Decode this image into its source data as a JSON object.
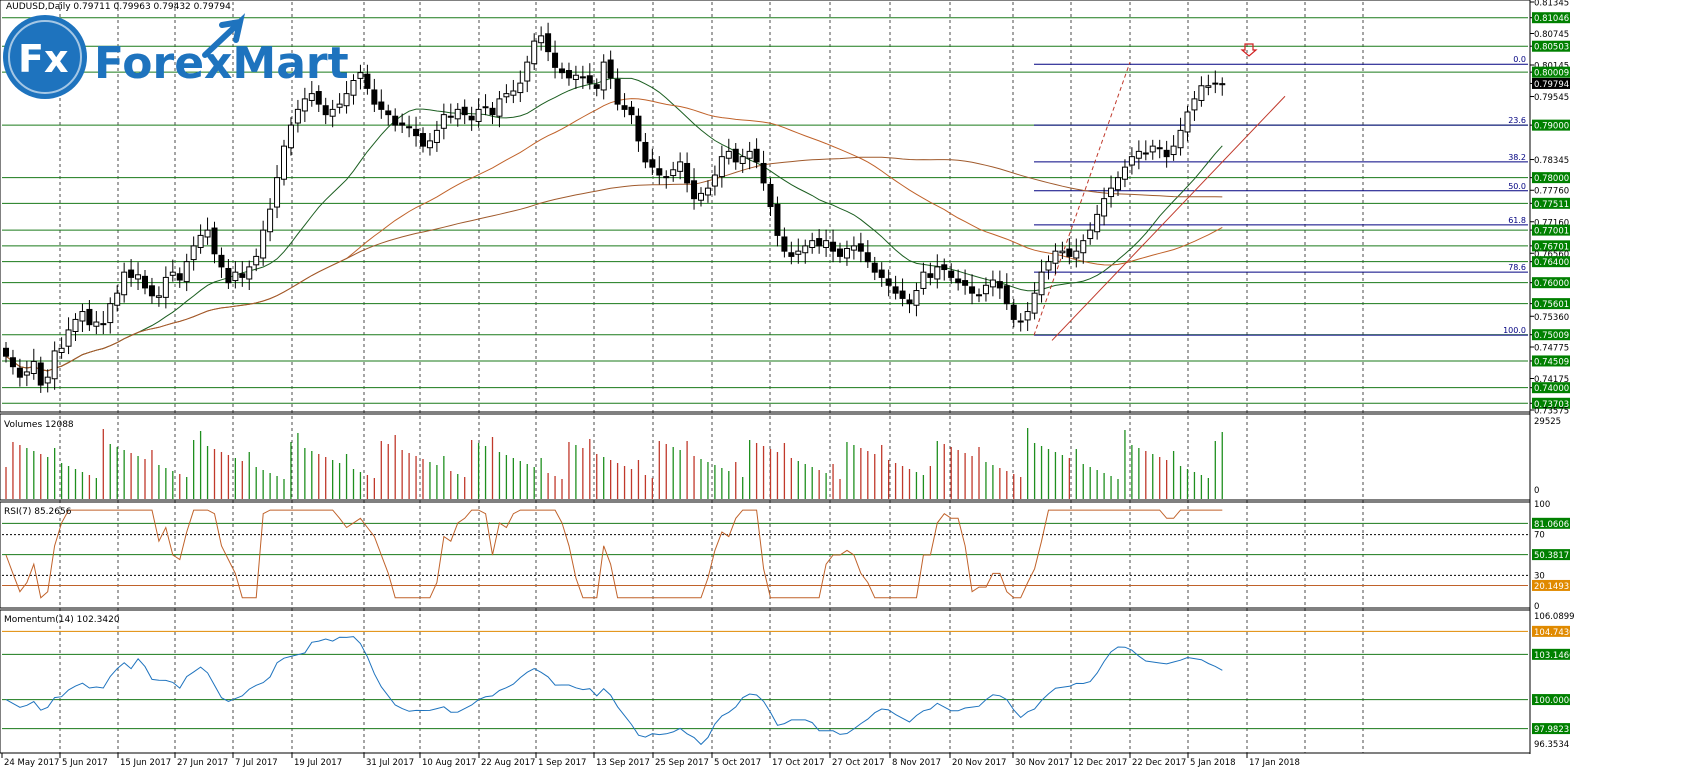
{
  "header": {
    "symbol_line": "AUDUSD,Daily  0.79711 0.79963 0.79432 0.79794",
    "logo_text": "ForexMart",
    "logo_badge": "Fx"
  },
  "colors": {
    "bull_candle": "#ffffff",
    "bear_candle": "#000000",
    "support_line": "#1a7a1a",
    "fib_line": "#000080",
    "ma_fast": "#1b5e20",
    "ma_slow": "#c0622a",
    "ma_200": "#a05a2c",
    "price_tag_bg": "#008000",
    "current_price_bg": "#000000",
    "volume_up": "#1f8f1f",
    "volume_down": "#c0392b",
    "rsi_line": "#c0622a",
    "momentum_line": "#1e73be",
    "logo_blue": "#1e73be"
  },
  "chart_data": [
    {
      "type": "candlestick",
      "panel": "price",
      "title": "AUDUSD,Daily  0.79711 0.79963 0.79432 0.79794",
      "ylim": [
        0.73575,
        0.81345
      ],
      "y_ticks": [
        "0.81345",
        "0.81046",
        "0.80745",
        "0.80503",
        "0.80145",
        "0.80009",
        "0.79794",
        "0.79545",
        "0.79000",
        "0.78345",
        "0.78000",
        "0.77760",
        "0.77511",
        "0.77160",
        "0.77001",
        "0.76701",
        "0.76560",
        "0.76400",
        "0.76000",
        "0.75601",
        "0.75360",
        "0.75009",
        "0.74775",
        "0.74509",
        "0.74175",
        "0.74000",
        "0.73703",
        "0.73575"
      ],
      "x_labels": [
        "24 May 2017",
        "5 Jun 2017",
        "15 Jun 2017",
        "27 Jun 2017",
        "7 Jul 2017",
        "19 Jul 2017",
        "31 Jul 2017",
        "10 Aug 2017",
        "22 Aug 2017",
        "1 Sep 2017",
        "13 Sep 2017",
        "25 Sep 2017",
        "5 Oct 2017",
        "17 Oct 2017",
        "27 Oct 2017",
        "8 Nov 2017",
        "20 Nov 2017",
        "30 Nov 2017",
        "12 Dec 2017",
        "22 Dec 2017",
        "5 Jan 2018",
        "17 Jan 2018"
      ],
      "horizontal_levels": [
        "0.81046",
        "0.80503",
        "0.80009",
        "0.79000",
        "0.78000",
        "0.77511",
        "0.77001",
        "0.76701",
        "0.76400",
        "0.76000",
        "0.75601",
        "0.75009",
        "0.74509",
        "0.74000",
        "0.73703"
      ],
      "current_price": "0.79794",
      "fibonacci": {
        "levels": [
          {
            "label": "0.0",
            "price": 0.8016
          },
          {
            "label": "23.6",
            "price": 0.79
          },
          {
            "label": "38.2",
            "price": 0.783
          },
          {
            "label": "50.0",
            "price": 0.7775
          },
          {
            "label": "61.8",
            "price": 0.771
          },
          {
            "label": "78.6",
            "price": 0.762
          },
          {
            "label": "100.0",
            "price": 0.75
          }
        ]
      },
      "closes": [
        0.746,
        0.744,
        0.742,
        0.743,
        0.745,
        0.7405,
        0.742,
        0.747,
        0.7475,
        0.751,
        0.753,
        0.7545,
        0.752,
        0.7525,
        0.752,
        0.756,
        0.758,
        0.762,
        0.761,
        0.7615,
        0.759,
        0.7575,
        0.7575,
        0.761,
        0.762,
        0.7605,
        0.764,
        0.767,
        0.769,
        0.77,
        0.7655,
        0.763,
        0.76,
        0.762,
        0.761,
        0.763,
        0.765,
        0.77,
        0.774,
        0.78,
        0.786,
        0.79,
        0.793,
        0.795,
        0.796,
        0.794,
        0.792,
        0.793,
        0.794,
        0.796,
        0.7985,
        0.8,
        0.797,
        0.794,
        0.793,
        0.792,
        0.79,
        0.79,
        0.7895,
        0.788,
        0.786,
        0.787,
        0.789,
        0.792,
        0.7915,
        0.793,
        0.792,
        0.791,
        0.793,
        0.7935,
        0.792,
        0.795,
        0.796,
        0.7965,
        0.798,
        0.802,
        0.806,
        0.807,
        0.804,
        0.801,
        0.8,
        0.799,
        0.7995,
        0.799,
        0.798,
        0.797,
        0.802,
        0.799,
        0.794,
        0.793,
        0.792,
        0.787,
        0.783,
        0.782,
        0.7805,
        0.78,
        0.7815,
        0.783,
        0.779,
        0.776,
        0.777,
        0.778,
        0.7805,
        0.784,
        0.785,
        0.783,
        0.784,
        0.785,
        0.783,
        0.779,
        0.7745,
        0.769,
        0.766,
        0.765,
        0.766,
        0.767,
        0.768,
        0.767,
        0.768,
        0.766,
        0.765,
        0.7665,
        0.767,
        0.766,
        0.764,
        0.762,
        0.761,
        0.7595,
        0.758,
        0.757,
        0.756,
        0.7585,
        0.762,
        0.761,
        0.763,
        0.7625,
        0.761,
        0.76,
        0.7595,
        0.758,
        0.7575,
        0.7595,
        0.7605,
        0.759,
        0.756,
        0.753,
        0.7525,
        0.7545,
        0.758,
        0.762,
        0.764,
        0.766,
        0.766,
        0.765,
        0.766,
        0.768,
        0.77,
        0.773,
        0.776,
        0.778,
        0.78,
        0.782,
        0.784,
        0.785,
        0.7845,
        0.786,
        0.7855,
        0.784,
        0.786,
        0.789,
        0.7925,
        0.795,
        0.7975,
        0.7975,
        0.798,
        0.7979
      ]
    },
    {
      "type": "bar",
      "panel": "volume",
      "title": "Volumes 12088",
      "y_ticks": [
        "29525",
        "0"
      ]
    },
    {
      "type": "line",
      "panel": "rsi",
      "title": "RSI(7) 85.2656",
      "y_ticks": [
        "100",
        "70",
        "30",
        "0"
      ],
      "levels": [
        "81.0606",
        "50.3817",
        "20.1493"
      ]
    },
    {
      "type": "line",
      "panel": "momentum",
      "title": "Momentum(14) 102.3420",
      "y_ticks": [
        "106.0899",
        "96.3534"
      ],
      "levels": [
        "104.7430",
        "103.1460",
        "100.0000",
        "97.9823"
      ]
    }
  ]
}
